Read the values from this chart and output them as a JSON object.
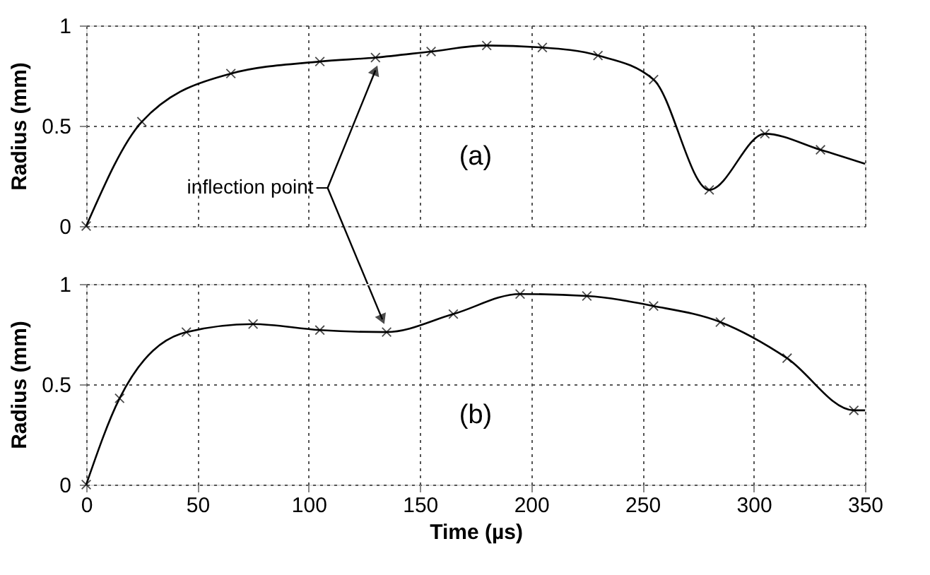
{
  "chart_data": [
    {
      "type": "line",
      "ylabel": "Radius (mm)",
      "xlim": [
        0,
        350
      ],
      "ylim": [
        0,
        1
      ],
      "xticks": [
        0,
        50,
        100,
        150,
        200,
        250,
        300,
        350
      ],
      "yticks": [
        0,
        0.5,
        1
      ],
      "grid": true,
      "tick_labels": "y",
      "annotations": [
        "(a)",
        {
          "text": "inflection point",
          "x": 130,
          "y": 0.84
        }
      ],
      "series": [
        {
          "type": "line",
          "color": "#000000",
          "marker": "none",
          "x": [
            0,
            25,
            65,
            105,
            130,
            155,
            180,
            205,
            230,
            255,
            280,
            305,
            330,
            350
          ],
          "values": [
            0,
            0.52,
            0.76,
            0.82,
            0.84,
            0.87,
            0.9,
            0.89,
            0.85,
            0.73,
            0.18,
            0.46,
            0.38,
            0.31
          ]
        },
        {
          "type": "scatter",
          "color": "#000000",
          "marker": "cross",
          "x": [
            0,
            25,
            65,
            105,
            130,
            155,
            180,
            205,
            230,
            255,
            280,
            305,
            330
          ],
          "values": [
            0,
            0.52,
            0.76,
            0.82,
            0.84,
            0.87,
            0.9,
            0.89,
            0.85,
            0.73,
            0.18,
            0.46,
            0.38
          ]
        }
      ]
    },
    {
      "type": "line",
      "xlabel": "Time (µs)",
      "ylabel": "Radius (mm)",
      "xlim": [
        0,
        350
      ],
      "ylim": [
        0,
        1
      ],
      "xticks": [
        0,
        50,
        100,
        150,
        200,
        250,
        300,
        350
      ],
      "yticks": [
        0,
        0.5,
        1
      ],
      "grid": true,
      "annotations": [
        "(b)"
      ],
      "series": [
        {
          "type": "line",
          "color": "#000000",
          "marker": "none",
          "x": [
            0,
            15,
            45,
            75,
            105,
            135,
            165,
            195,
            225,
            255,
            285,
            315,
            345,
            350
          ],
          "values": [
            0,
            0.43,
            0.76,
            0.8,
            0.77,
            0.76,
            0.85,
            0.95,
            0.94,
            0.89,
            0.81,
            0.63,
            0.37,
            0.37
          ]
        },
        {
          "type": "scatter",
          "color": "#000000",
          "marker": "cross",
          "x": [
            0,
            15,
            45,
            75,
            105,
            135,
            165,
            195,
            225,
            255,
            285,
            315,
            345
          ],
          "values": [
            0,
            0.43,
            0.76,
            0.8,
            0.77,
            0.76,
            0.85,
            0.95,
            0.94,
            0.89,
            0.81,
            0.63,
            0.37
          ]
        }
      ]
    }
  ]
}
